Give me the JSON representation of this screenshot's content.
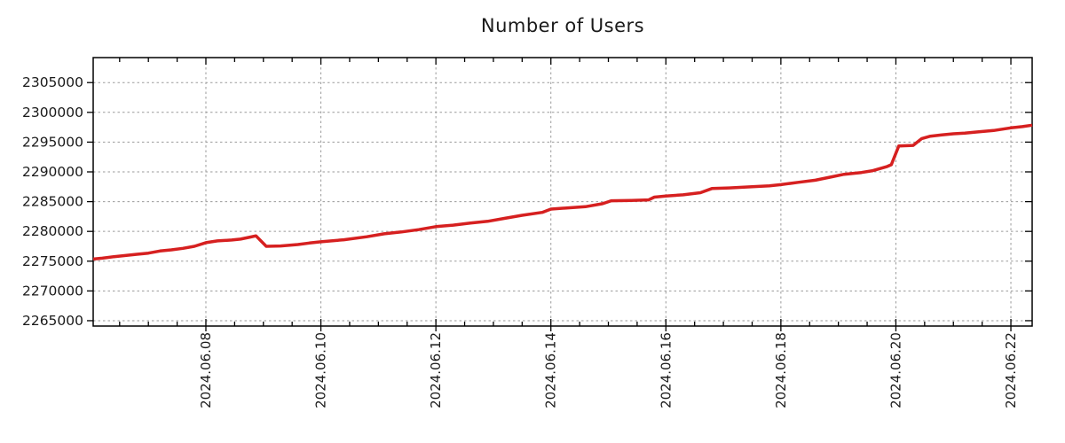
{
  "title": "Number of Users",
  "chart_data": {
    "type": "line",
    "title": "Number of Users",
    "xlabel": "",
    "ylabel": "",
    "grid": "dashed",
    "legend": null,
    "x_axis": {
      "tick_labels": [
        "2024.06.08",
        "2024.06.10",
        "2024.06.12",
        "2024.06.14",
        "2024.06.16",
        "2024.06.18",
        "2024.06.20",
        "2024.06.22"
      ],
      "tick_days": [
        8,
        10,
        12,
        14,
        16,
        18,
        20,
        22
      ],
      "minor_tick_step_days": 0.5,
      "range_days": [
        6.04,
        22.37
      ]
    },
    "y_axis": {
      "tick_labels": [
        "2265000",
        "2270000",
        "2275000",
        "2280000",
        "2285000",
        "2290000",
        "2295000",
        "2300000",
        "2305000"
      ],
      "tick_values": [
        2265000,
        2270000,
        2275000,
        2280000,
        2285000,
        2290000,
        2295000,
        2300000,
        2305000
      ],
      "range": [
        2264100,
        2309200
      ]
    },
    "series": [
      {
        "name": "Number of Users",
        "color": "#d62020",
        "points_day_value": [
          [
            6.04,
            2275350
          ],
          [
            6.2,
            2275500
          ],
          [
            6.4,
            2275750
          ],
          [
            6.6,
            2275950
          ],
          [
            6.8,
            2276150
          ],
          [
            7.0,
            2276350
          ],
          [
            7.2,
            2276700
          ],
          [
            7.4,
            2276900
          ],
          [
            7.6,
            2277150
          ],
          [
            7.8,
            2277500
          ],
          [
            8.0,
            2278100
          ],
          [
            8.2,
            2278400
          ],
          [
            8.45,
            2278550
          ],
          [
            8.6,
            2278700
          ],
          [
            8.75,
            2279000
          ],
          [
            8.87,
            2279250
          ],
          [
            9.05,
            2277500
          ],
          [
            9.3,
            2277550
          ],
          [
            9.6,
            2277800
          ],
          [
            9.8,
            2278050
          ],
          [
            10.0,
            2278250
          ],
          [
            10.4,
            2278600
          ],
          [
            10.8,
            2279100
          ],
          [
            11.1,
            2279600
          ],
          [
            11.4,
            2279900
          ],
          [
            11.7,
            2280300
          ],
          [
            12.0,
            2280800
          ],
          [
            12.3,
            2281050
          ],
          [
            12.6,
            2281400
          ],
          [
            12.9,
            2281700
          ],
          [
            13.2,
            2282200
          ],
          [
            13.5,
            2282700
          ],
          [
            13.85,
            2283200
          ],
          [
            14.0,
            2283750
          ],
          [
            14.3,
            2283950
          ],
          [
            14.6,
            2284150
          ],
          [
            14.9,
            2284650
          ],
          [
            15.05,
            2285150
          ],
          [
            15.4,
            2285200
          ],
          [
            15.7,
            2285300
          ],
          [
            15.8,
            2285750
          ],
          [
            16.0,
            2285950
          ],
          [
            16.3,
            2286150
          ],
          [
            16.6,
            2286500
          ],
          [
            16.8,
            2287200
          ],
          [
            17.1,
            2287300
          ],
          [
            17.5,
            2287500
          ],
          [
            17.8,
            2287650
          ],
          [
            18.0,
            2287850
          ],
          [
            18.3,
            2288250
          ],
          [
            18.6,
            2288600
          ],
          [
            18.9,
            2289200
          ],
          [
            19.1,
            2289600
          ],
          [
            19.4,
            2289900
          ],
          [
            19.6,
            2290200
          ],
          [
            19.85,
            2290900
          ],
          [
            19.92,
            2291200
          ],
          [
            20.05,
            2294350
          ],
          [
            20.3,
            2294450
          ],
          [
            20.45,
            2295600
          ],
          [
            20.6,
            2296000
          ],
          [
            20.8,
            2296200
          ],
          [
            21.0,
            2296400
          ],
          [
            21.2,
            2296500
          ],
          [
            21.4,
            2296700
          ],
          [
            21.7,
            2296950
          ],
          [
            22.0,
            2297400
          ],
          [
            22.2,
            2297600
          ],
          [
            22.37,
            2297850
          ]
        ]
      }
    ]
  },
  "colors": {
    "line": "#d62020",
    "grid": "#9a9a9a",
    "axis": "#000000",
    "text": "#1a1a1a",
    "background": "#ffffff"
  }
}
